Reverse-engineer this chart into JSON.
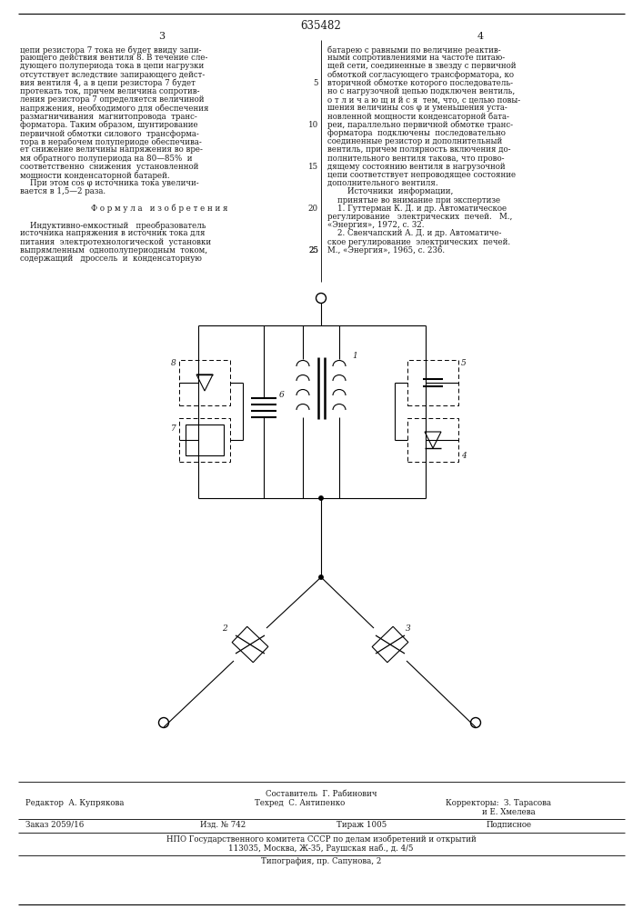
{
  "patent_number": "635482",
  "bg_color": "#ffffff",
  "text_color": "#1a1a1a",
  "col1_lines": [
    "цепи резистора 7 тока не будет ввиду запи-",
    "рающего действия вентиля 8. В течение сле-",
    "дующего полупериода тока в цепи нагрузки",
    "отсутствует вследствие запирающего дейст-",
    "вия вентиля 4, а в цепи резистора 7 будет",
    "протекать ток, причем величина сопротив-",
    "ления резистора 7 определяется величиной",
    "напряжения, необходимого для обеспечения",
    "размагничивания  магнитопровода  транс-",
    "форматора. Таким образом, шунтирование",
    "первичной обмотки силового  трансформа-",
    "тора в нерабочем полупериоде обеспечива-",
    "ет снижение величины напряжения во вре-",
    "мя обратного полупериода на 80—85%  и",
    "соответственно  снижения  установленной",
    "мощности конденсаторной батарей.",
    "    При этом cos φ источника тока увеличи-",
    "вается в 1,5—2 раза.",
    "",
    "        Ф о р м у л а   и з о б р е т е н и я",
    "",
    "    Индуктивно-емкостный   преобразователь",
    "источника напряжения в источник тока для",
    "питания  электротехнологической  установки",
    "выпрямленным  однополупериодным  током,",
    "содержащий   дроссель  и  конденсаторную"
  ],
  "col2_lines": [
    "батарею с равными по величине реактив-",
    "ными сопротивлениями на частоте питаю-",
    "щей сети, соединенные в звезду с первичной",
    "обмоткой согласующего трансформатора, ко",
    "вторичной обмотке которого последователь-",
    "но с нагрузочной цепью подключен вентиль,",
    "о т л и ч а ю щ и й с я  тем, что, с целью повы-",
    "шения величины cos φ и уменьшения уста-",
    "новленной мощности конденсаторной бата-",
    "реи, параллельно первичной обмотке транс-",
    "форматора  подключены  последовательно",
    "соединенные резистор и дополнительный",
    "вентиль, причем полярность включения до-",
    "полнительного вентиля такова, что прово-",
    "дящему состоянию вентиля в нагрузочной",
    "цепи соответствует непроводящее состояние",
    "дополнительного вентиля.",
    "        Источники  информации,",
    "    принятые во внимание при экспертизе",
    "    1. Гуттерман К. Д. и др. Автоматическое",
    "регулирование   электрических  печей.   М.,",
    "«Энергия», 1972, с. 32.",
    "    2. Свенчапский А. Д. и др. Автоматиче-",
    "ское регулирование  электрических  печей.",
    "М., «Энергия», 1965, с. 236."
  ],
  "line_numbers": {
    "4": "5",
    "9": "10",
    "14": "15",
    "19": "20",
    "24": "25"
  },
  "footer": {
    "line1": "Составитель  Г. Рабинович",
    "editor": "Редактор  А. Купрякова",
    "techred": "Техред  С. Антипенко",
    "correctors_label": "Корректоры:",
    "corrector1": "З. Тарасова",
    "corrector2": "и Е. Хмелева",
    "order": "Заказ 2059/16",
    "izd": "Изд. № 742",
    "tirazh": "Тираж 1005",
    "podp": "Подписное",
    "npo": "НПО Государственного комитета СССР по делам изобретений и открытий",
    "addr": "113035, Москва, Ж-35, Раушская наб., д. 4/5",
    "typo": "Типография, пр. Сапунова, 2"
  }
}
